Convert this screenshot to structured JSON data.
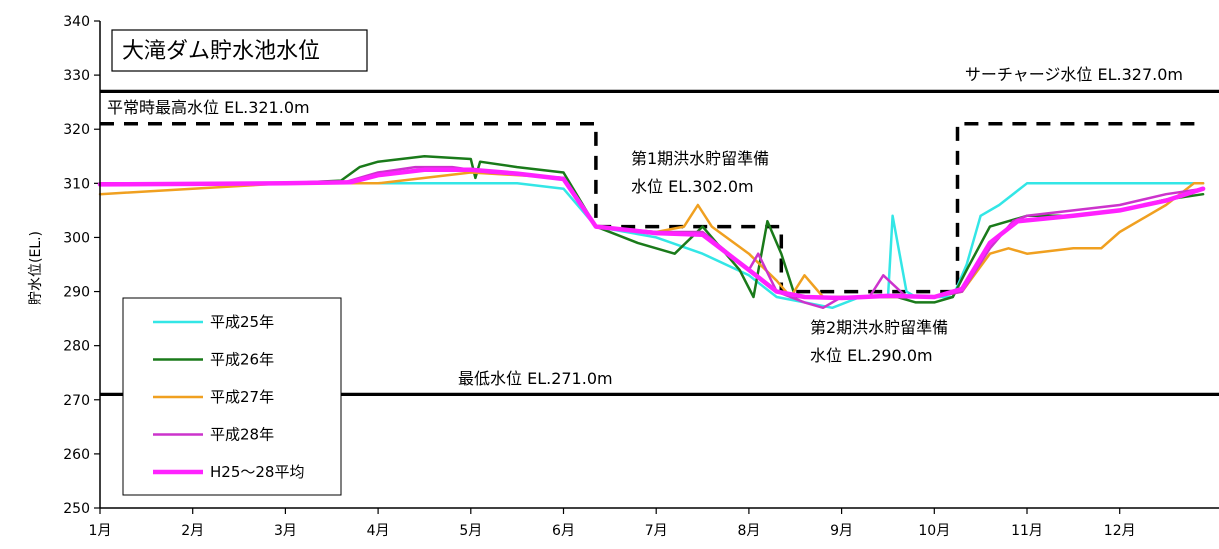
{
  "chart_data": {
    "type": "line",
    "title": "大滝ダム貯水池水位",
    "ylabel": "貯水位(EL.)",
    "ylim": [
      250,
      340
    ],
    "yticks": [
      250,
      260,
      270,
      280,
      290,
      300,
      310,
      320,
      330,
      340
    ],
    "xlim": [
      1,
      12.9
    ],
    "x_tick_labels": [
      "1月",
      "2月",
      "3月",
      "4月",
      "5月",
      "6月",
      "7月",
      "8月",
      "9月",
      "10月",
      "11月",
      "12月"
    ],
    "grid": false,
    "legend_position": "bottom-left",
    "reference_lines": [
      {
        "label": "サーチャージ水位 EL.327.0m",
        "value": 327.0,
        "style": "solid"
      },
      {
        "label": "平常時最高水位 EL.321.0m",
        "value": 321.0,
        "style": "none"
      },
      {
        "label": "最低水位 EL.271.0m",
        "value": 271.0,
        "style": "solid"
      }
    ],
    "control_rule": {
      "style": "dashed",
      "points": [
        [
          1,
          321
        ],
        [
          6.35,
          321
        ],
        [
          6.35,
          302
        ],
        [
          8.35,
          302
        ],
        [
          8.35,
          290
        ],
        [
          10.25,
          290
        ],
        [
          10.25,
          321
        ],
        [
          12.9,
          321
        ]
      ]
    },
    "annotations": [
      {
        "lines": [
          "第1期洪水貯留準備",
          "水位 EL.302.0m"
        ]
      },
      {
        "lines": [
          "第2期洪水貯留準備",
          "水位 EL.290.0m"
        ]
      }
    ],
    "series": [
      {
        "name": "平成25年",
        "color": "#33e6e6",
        "width": 2.5,
        "points": [
          [
            1,
            310
          ],
          [
            2,
            310
          ],
          [
            3,
            310
          ],
          [
            4,
            310
          ],
          [
            4.5,
            310
          ],
          [
            5,
            310
          ],
          [
            5.5,
            310
          ],
          [
            6,
            309
          ],
          [
            6.35,
            302
          ],
          [
            7,
            300
          ],
          [
            7.5,
            297
          ],
          [
            8,
            293
          ],
          [
            8.3,
            289
          ],
          [
            8.6,
            288
          ],
          [
            8.9,
            287
          ],
          [
            9.2,
            289
          ],
          [
            9.5,
            289
          ],
          [
            9.55,
            304
          ],
          [
            9.7,
            290
          ],
          [
            9.8,
            289
          ],
          [
            10,
            289
          ],
          [
            10.2,
            289
          ],
          [
            10.35,
            295
          ],
          [
            10.5,
            304
          ],
          [
            10.7,
            306
          ],
          [
            11,
            310
          ],
          [
            11.5,
            310
          ],
          [
            12,
            310
          ],
          [
            12.5,
            310
          ],
          [
            12.9,
            310
          ]
        ]
      },
      {
        "name": "平成26年",
        "color": "#1a7a1a",
        "width": 2.5,
        "points": [
          [
            1,
            310
          ],
          [
            2,
            310
          ],
          [
            3,
            310
          ],
          [
            3.6,
            310.5
          ],
          [
            3.8,
            313
          ],
          [
            4,
            314
          ],
          [
            4.5,
            315
          ],
          [
            5,
            314.5
          ],
          [
            5.05,
            311
          ],
          [
            5.1,
            314
          ],
          [
            5.5,
            313
          ],
          [
            6,
            312
          ],
          [
            6.35,
            302
          ],
          [
            6.8,
            299
          ],
          [
            7.2,
            297
          ],
          [
            7.5,
            302
          ],
          [
            7.9,
            294
          ],
          [
            8.05,
            289
          ],
          [
            8.2,
            303
          ],
          [
            8.35,
            297
          ],
          [
            8.5,
            289
          ],
          [
            8.8,
            289
          ],
          [
            9.2,
            289
          ],
          [
            9.6,
            289
          ],
          [
            9.8,
            288
          ],
          [
            10.0,
            288
          ],
          [
            10.2,
            289
          ],
          [
            10.35,
            294
          ],
          [
            10.6,
            302
          ],
          [
            11,
            304
          ],
          [
            11.5,
            304
          ],
          [
            12,
            305
          ],
          [
            12.5,
            307
          ],
          [
            12.9,
            308
          ]
        ]
      },
      {
        "name": "平成27年",
        "color": "#f0a020",
        "width": 2.5,
        "points": [
          [
            1,
            308
          ],
          [
            2,
            309
          ],
          [
            3,
            310
          ],
          [
            4,
            310
          ],
          [
            5,
            312
          ],
          [
            6,
            311
          ],
          [
            6.35,
            302
          ],
          [
            7,
            301
          ],
          [
            7.3,
            302
          ],
          [
            7.45,
            306
          ],
          [
            7.6,
            302
          ],
          [
            8,
            297
          ],
          [
            8.3,
            292
          ],
          [
            8.45,
            289
          ],
          [
            8.6,
            293
          ],
          [
            8.8,
            289
          ],
          [
            9.2,
            289
          ],
          [
            9.6,
            289
          ],
          [
            10,
            289
          ],
          [
            10.3,
            290
          ],
          [
            10.6,
            297
          ],
          [
            10.8,
            298
          ],
          [
            11,
            297
          ],
          [
            11.5,
            298
          ],
          [
            11.8,
            298
          ],
          [
            12,
            301
          ],
          [
            12.5,
            306
          ],
          [
            12.8,
            310
          ],
          [
            12.9,
            310
          ]
        ]
      },
      {
        "name": "平成28年",
        "color": "#cc33cc",
        "width": 2.5,
        "points": [
          [
            1,
            310
          ],
          [
            2,
            310
          ],
          [
            2.5,
            310
          ],
          [
            3,
            310
          ],
          [
            3.6,
            310
          ],
          [
            4,
            312
          ],
          [
            4.4,
            313
          ],
          [
            4.8,
            313
          ],
          [
            5.2,
            312
          ],
          [
            6,
            311
          ],
          [
            6.35,
            302
          ],
          [
            7,
            301
          ],
          [
            7.5,
            301
          ],
          [
            8,
            294
          ],
          [
            8.1,
            297
          ],
          [
            8.3,
            290
          ],
          [
            8.6,
            288
          ],
          [
            8.8,
            287
          ],
          [
            9,
            289
          ],
          [
            9.3,
            289
          ],
          [
            9.45,
            293
          ],
          [
            9.7,
            289
          ],
          [
            10,
            289
          ],
          [
            10.3,
            290
          ],
          [
            10.6,
            298
          ],
          [
            10.85,
            303
          ],
          [
            11,
            304
          ],
          [
            11.5,
            305
          ],
          [
            12,
            306
          ],
          [
            12.5,
            308
          ],
          [
            12.9,
            309
          ]
        ]
      },
      {
        "name": "H25～28平均",
        "color": "#ff22ff",
        "width": 4.5,
        "points": [
          [
            1,
            309.8
          ],
          [
            2,
            309.9
          ],
          [
            3,
            310
          ],
          [
            3.7,
            310.2
          ],
          [
            4,
            311.5
          ],
          [
            4.5,
            312.5
          ],
          [
            5,
            312.5
          ],
          [
            5.5,
            311.8
          ],
          [
            6,
            310.8
          ],
          [
            6.35,
            302
          ],
          [
            7,
            300.8
          ],
          [
            7.5,
            300.5
          ],
          [
            8,
            294
          ],
          [
            8.3,
            290
          ],
          [
            8.6,
            289
          ],
          [
            9,
            288.8
          ],
          [
            9.5,
            289.2
          ],
          [
            10,
            289
          ],
          [
            10.3,
            290.5
          ],
          [
            10.6,
            299
          ],
          [
            10.9,
            303
          ],
          [
            11.5,
            304
          ],
          [
            12,
            305
          ],
          [
            12.5,
            306.8
          ],
          [
            12.9,
            309
          ]
        ]
      }
    ]
  }
}
